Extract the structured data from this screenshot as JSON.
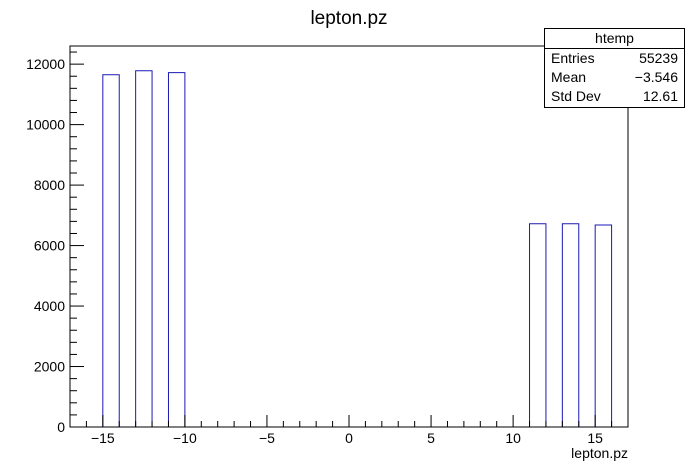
{
  "chart_data": {
    "type": "bar",
    "title": "lepton.pz",
    "xlabel": "lepton.pz",
    "ylabel": "",
    "xlim": [
      -17,
      17
    ],
    "ylim": [
      0,
      12600
    ],
    "x_ticks": [
      -15,
      -10,
      -5,
      0,
      5,
      10,
      15
    ],
    "x_tick_labels": [
      "−15",
      "−10",
      "−5",
      "0",
      "5",
      "10",
      "15"
    ],
    "y_ticks": [
      0,
      2000,
      4000,
      6000,
      8000,
      10000,
      12000
    ],
    "y_tick_labels": [
      "0",
      "2000",
      "4000",
      "6000",
      "8000",
      "10000",
      "12000"
    ],
    "bins": [
      {
        "x0": -15,
        "x1": -14,
        "value": 11650
      },
      {
        "x0": -13,
        "x1": -12,
        "value": 11780
      },
      {
        "x0": -11,
        "x1": -10,
        "value": 11720
      },
      {
        "x0": 11,
        "x1": 12,
        "value": 6720
      },
      {
        "x0": 13,
        "x1": 14,
        "value": 6720
      },
      {
        "x0": 15,
        "x1": 16,
        "value": 6680
      }
    ],
    "line_color": "#1a1ab4",
    "grid": false
  },
  "stats": {
    "name": "htemp",
    "rows": [
      {
        "label": "Entries",
        "value": "55239"
      },
      {
        "label": "Mean",
        "value": "−3.546"
      },
      {
        "label": "Std Dev",
        "value": "12.61"
      }
    ]
  }
}
